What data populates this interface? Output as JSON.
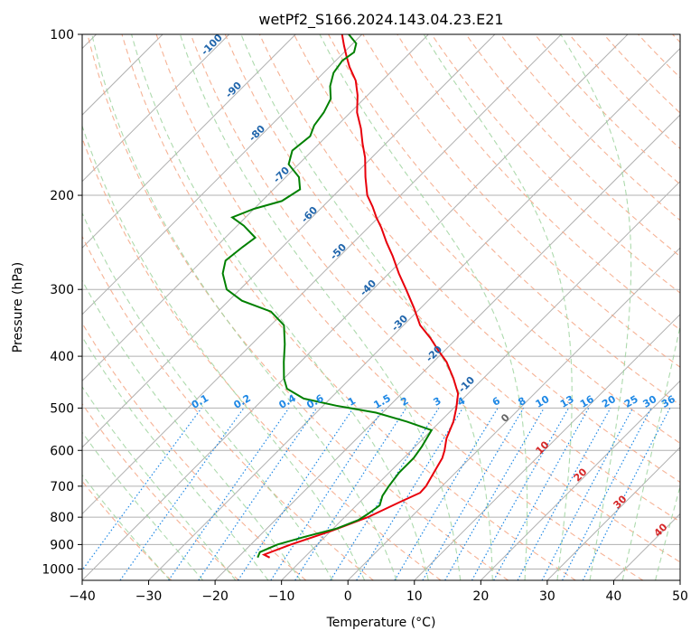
{
  "chart_data": {
    "type": "line",
    "subtype": "skew-t log-p diagram",
    "title": "wetPf2_S166.2024.143.04.23.E21",
    "xlabel": "Temperature (°C)",
    "ylabel": "Pressure (hPa)",
    "xlim": [
      -40,
      50
    ],
    "ylim": [
      1050,
      100
    ],
    "y_scale": "log",
    "grid": true,
    "x_ticks": [
      "−40",
      "−30",
      "−20",
      "−10",
      "0",
      "10",
      "20",
      "30",
      "40",
      "50"
    ],
    "y_ticks": [
      "100",
      "200",
      "300",
      "400",
      "500",
      "600",
      "700",
      "800",
      "900",
      "1000"
    ],
    "dry_adiabat_labels": [
      "-100",
      "-90",
      "-80",
      "-70",
      "-60",
      "-50",
      "-40",
      "-30",
      "-20",
      "-10"
    ],
    "moist_adiabat_labels": [
      "0",
      "10",
      "20",
      "30",
      "40"
    ],
    "mixing_ratio_labels": [
      "0.1",
      "0.2",
      "0.4",
      "0.6",
      "1",
      "1.5",
      "2",
      "3",
      "4",
      "6",
      "8",
      "10",
      "13",
      "16",
      "20",
      "25",
      "30",
      "36"
    ],
    "colors": {
      "temperature": "#e8000b",
      "dewpoint": "#008000",
      "grid": "#b0b0b0",
      "dry_adiabat": "#f4a582",
      "moist_adiabat": "#9fd39f",
      "mixing_ratio": "#1e88e5",
      "dry_label": "#2166ac",
      "moist_label": "#d62728"
    },
    "series": [
      {
        "name": "temperature",
        "points": [
          [
            952,
            -15.2
          ],
          [
            940,
            -16.5
          ],
          [
            900,
            -14.0
          ],
          [
            850,
            -10.0
          ],
          [
            800,
            -6.5
          ],
          [
            750,
            -4.0
          ],
          [
            720,
            -2.3
          ],
          [
            700,
            -2.4
          ],
          [
            650,
            -3.5
          ],
          [
            620,
            -4.2
          ],
          [
            600,
            -5.0
          ],
          [
            570,
            -6.5
          ],
          [
            530,
            -8.0
          ],
          [
            500,
            -9.6
          ],
          [
            470,
            -11.5
          ],
          [
            440,
            -14.5
          ],
          [
            410,
            -18.0
          ],
          [
            390,
            -21.0
          ],
          [
            370,
            -24.0
          ],
          [
            350,
            -27.5
          ],
          [
            325,
            -31.0
          ],
          [
            300,
            -35.0
          ],
          [
            280,
            -38.5
          ],
          [
            260,
            -42.0
          ],
          [
            245,
            -45.0
          ],
          [
            230,
            -48.0
          ],
          [
            220,
            -50.3
          ],
          [
            210,
            -52.5
          ],
          [
            200,
            -55.0
          ],
          [
            185,
            -58.0
          ],
          [
            170,
            -61.0
          ],
          [
            160,
            -63.5
          ],
          [
            150,
            -66.0
          ],
          [
            140,
            -69.0
          ],
          [
            130,
            -71.5
          ],
          [
            122,
            -74.0
          ],
          [
            115,
            -77.0
          ],
          [
            110,
            -79.0
          ],
          [
            105,
            -81.0
          ],
          [
            100,
            -83.0
          ]
        ]
      },
      {
        "name": "dewpoint",
        "points": [
          [
            952,
            -17.0
          ],
          [
            930,
            -17.5
          ],
          [
            900,
            -16.0
          ],
          [
            870,
            -13.0
          ],
          [
            840,
            -9.5
          ],
          [
            810,
            -7.5
          ],
          [
            790,
            -7.0
          ],
          [
            760,
            -6.5
          ],
          [
            730,
            -7.5
          ],
          [
            700,
            -8.0
          ],
          [
            660,
            -8.5
          ],
          [
            620,
            -8.5
          ],
          [
            590,
            -9.0
          ],
          [
            570,
            -9.5
          ],
          [
            550,
            -10.0
          ],
          [
            530,
            -15.0
          ],
          [
            510,
            -21.0
          ],
          [
            495,
            -28.0
          ],
          [
            480,
            -34.0
          ],
          [
            460,
            -38.0
          ],
          [
            440,
            -40.0
          ],
          [
            410,
            -42.5
          ],
          [
            380,
            -45.0
          ],
          [
            350,
            -48.0
          ],
          [
            330,
            -52.0
          ],
          [
            315,
            -58.0
          ],
          [
            300,
            -62.0
          ],
          [
            280,
            -65.0
          ],
          [
            265,
            -66.5
          ],
          [
            250,
            -66.0
          ],
          [
            240,
            -65.5
          ],
          [
            228,
            -69.0
          ],
          [
            220,
            -72.0
          ],
          [
            212,
            -70.0
          ],
          [
            205,
            -67.0
          ],
          [
            195,
            -66.0
          ],
          [
            185,
            -68.0
          ],
          [
            175,
            -71.5
          ],
          [
            165,
            -73.0
          ],
          [
            155,
            -72.5
          ],
          [
            148,
            -73.5
          ],
          [
            140,
            -74.0
          ],
          [
            132,
            -75.0
          ],
          [
            125,
            -77.0
          ],
          [
            118,
            -78.5
          ],
          [
            112,
            -79.0
          ],
          [
            108,
            -78.5
          ],
          [
            104,
            -79.5
          ],
          [
            100,
            -82.0
          ]
        ]
      }
    ]
  }
}
